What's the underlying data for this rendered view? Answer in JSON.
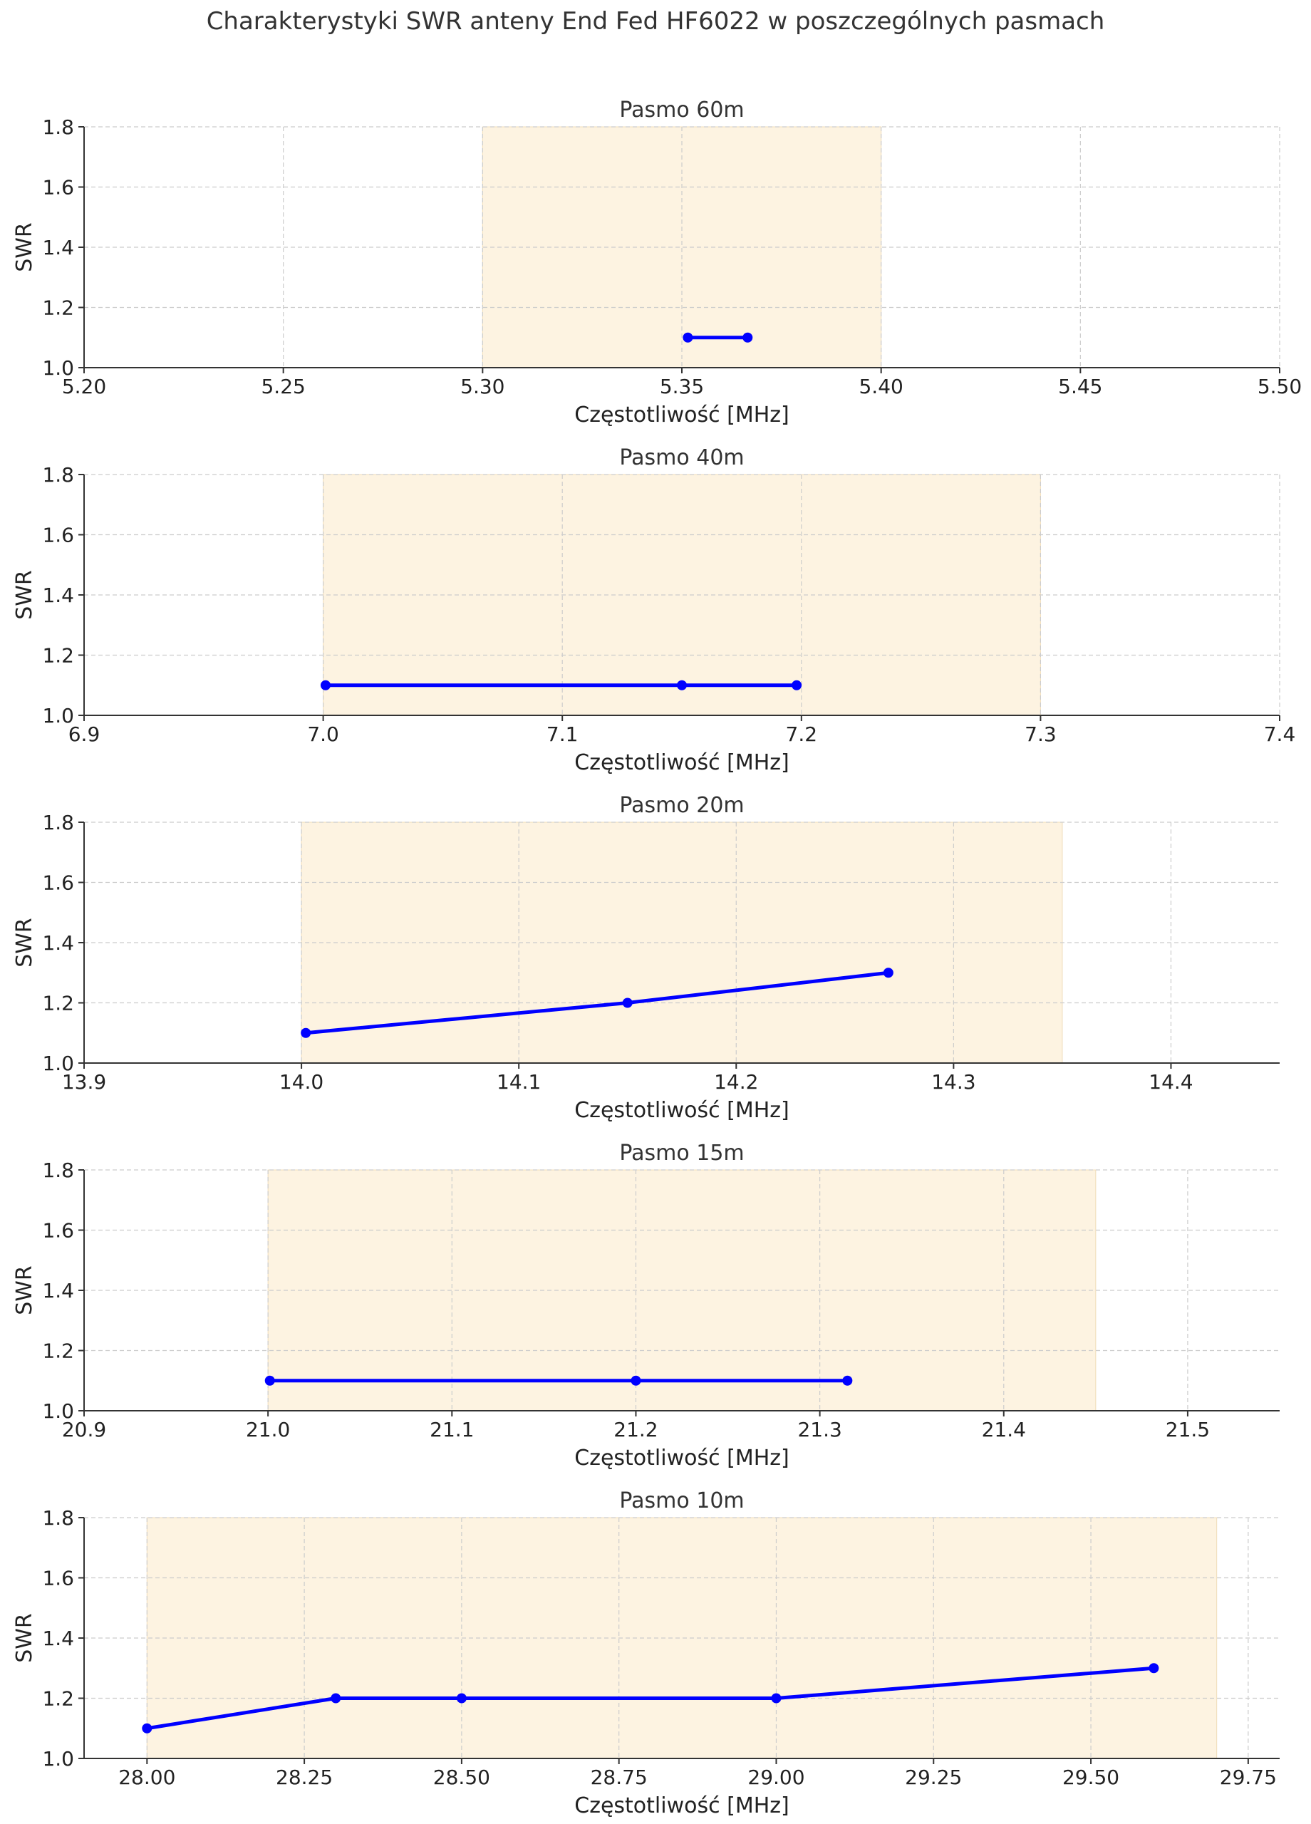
{
  "figure": {
    "title": "Charakterystyki SWR anteny End Fed HF6022 w poszczególnych pasmach"
  },
  "colors": {
    "line": "#0000ff",
    "band_fill": "#fdf3e1",
    "grid": "#cccccc",
    "axis": "#333333",
    "text": "#222222"
  },
  "chart_data": [
    {
      "type": "line",
      "title": "Pasmo 60m",
      "xlabel": "Częstotliwość [MHz]",
      "ylabel": "SWR",
      "xlim": [
        5.2,
        5.5
      ],
      "ylim": [
        1.0,
        1.8
      ],
      "xticks": [
        "5.20",
        "5.25",
        "5.30",
        "5.35",
        "5.40",
        "5.45",
        "5.50"
      ],
      "yticks": [
        "1.0",
        "1.2",
        "1.4",
        "1.6",
        "1.8"
      ],
      "band": [
        5.3,
        5.4
      ],
      "grid": true,
      "x": [
        5.3515,
        5.3665
      ],
      "y": [
        1.1,
        1.1
      ]
    },
    {
      "type": "line",
      "title": "Pasmo 40m",
      "xlabel": "Częstotliwość [MHz]",
      "ylabel": "SWR",
      "xlim": [
        6.9,
        7.4
      ],
      "ylim": [
        1.0,
        1.8
      ],
      "xticks": [
        "6.9",
        "7.0",
        "7.1",
        "7.2",
        "7.3",
        "7.4"
      ],
      "yticks": [
        "1.0",
        "1.2",
        "1.4",
        "1.6",
        "1.8"
      ],
      "band": [
        7.0,
        7.3
      ],
      "grid": true,
      "x": [
        7.001,
        7.15,
        7.198
      ],
      "y": [
        1.1,
        1.1,
        1.1
      ]
    },
    {
      "type": "line",
      "title": "Pasmo 20m",
      "xlabel": "Częstotliwość [MHz]",
      "ylabel": "SWR",
      "xlim": [
        13.9,
        14.45
      ],
      "ylim": [
        1.0,
        1.8
      ],
      "xticks": [
        "13.9",
        "14.0",
        "14.1",
        "14.2",
        "14.3",
        "14.4"
      ],
      "yticks": [
        "1.0",
        "1.2",
        "1.4",
        "1.6",
        "1.8"
      ],
      "band": [
        14.0,
        14.35
      ],
      "grid": true,
      "x": [
        14.002,
        14.15,
        14.27
      ],
      "y": [
        1.1,
        1.2,
        1.3
      ]
    },
    {
      "type": "line",
      "title": "Pasmo 15m",
      "xlabel": "Częstotliwość [MHz]",
      "ylabel": "SWR",
      "xlim": [
        20.9,
        21.55
      ],
      "ylim": [
        1.0,
        1.8
      ],
      "xticks": [
        "20.9",
        "21.0",
        "21.1",
        "21.2",
        "21.3",
        "21.4",
        "21.5"
      ],
      "yticks": [
        "1.0",
        "1.2",
        "1.4",
        "1.6",
        "1.8"
      ],
      "band": [
        21.0,
        21.45
      ],
      "grid": true,
      "x": [
        21.001,
        21.2,
        21.315
      ],
      "y": [
        1.1,
        1.1,
        1.1
      ]
    },
    {
      "type": "line",
      "title": "Pasmo 10m",
      "xlabel": "Częstotliwość [MHz]",
      "ylabel": "SWR",
      "xlim": [
        27.9,
        29.8
      ],
      "ylim": [
        1.0,
        1.8
      ],
      "xticks": [
        "28.00",
        "28.25",
        "28.50",
        "28.75",
        "29.00",
        "29.25",
        "29.50",
        "29.75"
      ],
      "yticks": [
        "1.0",
        "1.2",
        "1.4",
        "1.6",
        "1.8"
      ],
      "band": [
        28.0,
        29.7
      ],
      "grid": true,
      "x": [
        28.0,
        28.3,
        28.5,
        29.0,
        29.6
      ],
      "y": [
        1.1,
        1.2,
        1.2,
        1.2,
        1.3
      ]
    }
  ]
}
